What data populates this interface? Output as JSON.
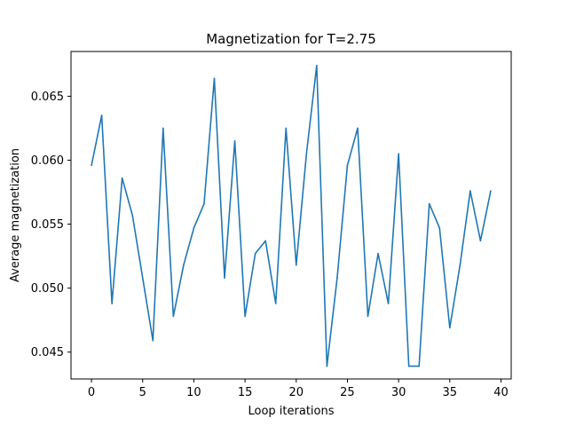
{
  "chart_data": {
    "type": "line",
    "title": "Magnetization for T=2.75",
    "xlabel": "Loop iterations",
    "ylabel": "Average magnetization",
    "xlim": [
      -2,
      41
    ],
    "ylim": [
      0.0429,
      0.0685
    ],
    "xticks": [
      0,
      5,
      10,
      15,
      20,
      25,
      30,
      35,
      40
    ],
    "yticks": [
      0.045,
      0.05,
      0.055,
      0.06,
      0.065
    ],
    "ytick_labels": [
      "0.045",
      "0.050",
      "0.055",
      "0.060",
      "0.065"
    ],
    "grid": false,
    "series": [
      {
        "color": "#1f77b4",
        "x": [
          0,
          1,
          2,
          3,
          4,
          5,
          6,
          7,
          8,
          9,
          10,
          11,
          12,
          13,
          14,
          15,
          16,
          17,
          18,
          19,
          20,
          21,
          22,
          23,
          24,
          25,
          26,
          27,
          28,
          29,
          30,
          31,
          32,
          33,
          34,
          35,
          36,
          37,
          38,
          39
        ],
        "y": [
          0.0596,
          0.0635,
          0.0488,
          0.0586,
          0.0557,
          0.0508,
          0.0459,
          0.0625,
          0.0478,
          0.0518,
          0.0547,
          0.0566,
          0.0664,
          0.0508,
          0.0615,
          0.0478,
          0.0527,
          0.0537,
          0.0488,
          0.0625,
          0.0518,
          0.0605,
          0.0674,
          0.0439,
          0.0508,
          0.0596,
          0.0625,
          0.0478,
          0.0527,
          0.0488,
          0.0605,
          0.0439,
          0.0439,
          0.0566,
          0.0547,
          0.0469,
          0.0518,
          0.0576,
          0.0537,
          0.0576
        ]
      }
    ]
  }
}
